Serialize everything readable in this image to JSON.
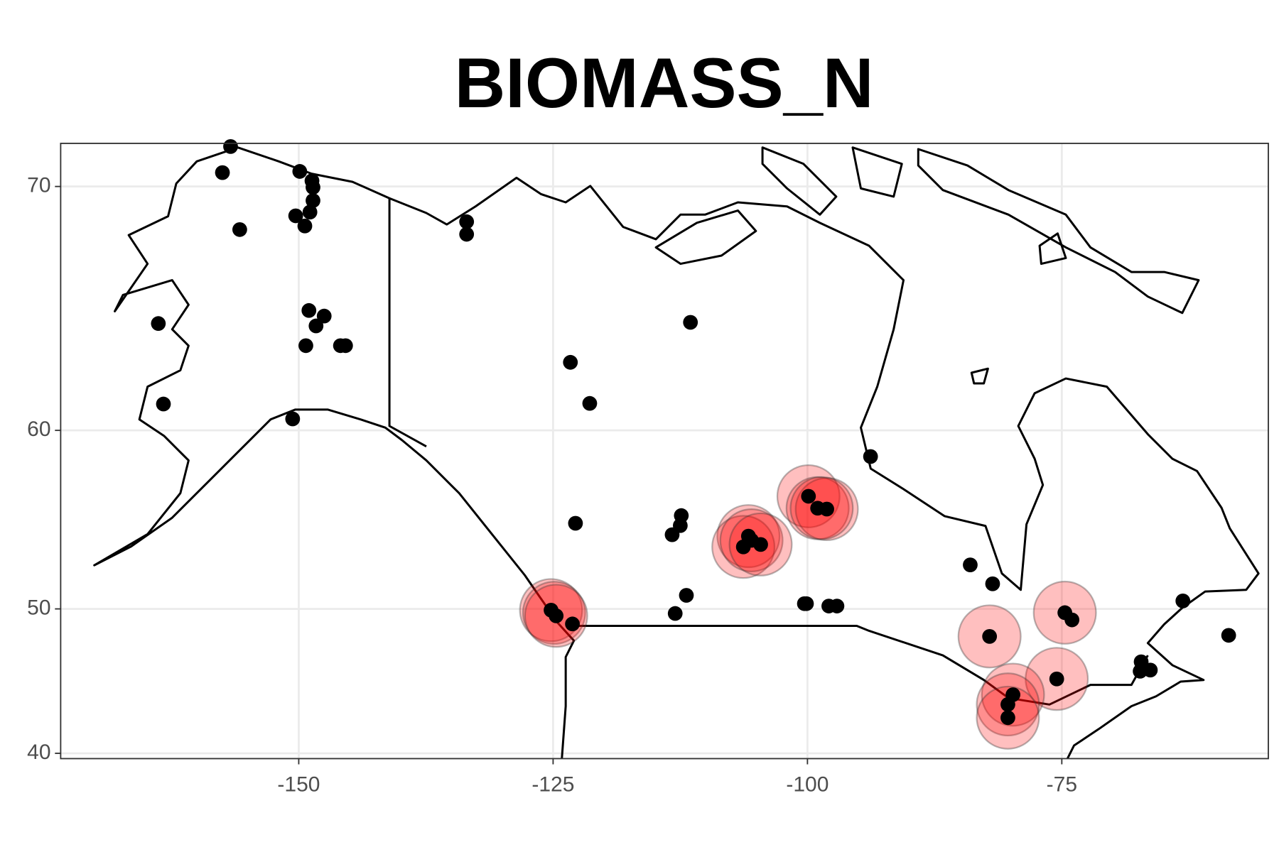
{
  "chart_data": {
    "type": "map",
    "title": "BIOMASS_N",
    "projection": "mercator",
    "xlim": [
      -173.4,
      -54.7
    ],
    "ylim": [
      39.6,
      71.4
    ],
    "xticks": [
      -150,
      -125,
      -100,
      -75
    ],
    "yticks": [
      70,
      60,
      50,
      40
    ],
    "grid": true,
    "points": {
      "color": "#000000",
      "x": [
        -156.7,
        -157.5,
        -155.8,
        -149.9,
        -148.7,
        -148.6,
        -148.6,
        -148.9,
        -150.3,
        -149.4,
        -149.0,
        -147.5,
        -148.3,
        -149.3,
        -145.9,
        -145.4,
        -163.8,
        -163.3,
        -150.6,
        -133.5,
        -133.5,
        -123.3,
        -121.4,
        -111.5,
        -122.8,
        -112.4,
        -112.5,
        -113.3,
        -111.9,
        -113.0,
        -100.3,
        -100.1,
        -97.9,
        -97.1,
        -105.8,
        -106.3,
        -104.6,
        -105.5,
        -99.9,
        -99.0,
        -98.1,
        -125.2,
        -124.7,
        -123.1,
        -93.8,
        -84.0,
        -81.8,
        -82.1,
        -74.7,
        -74.0,
        -75.5,
        -79.8,
        -80.3,
        -80.3,
        -63.1,
        -58.6,
        -67.2,
        -66.3,
        -67.3
      ],
      "y": [
        71.3,
        70.46,
        68.5,
        70.5,
        70.19,
        69.97,
        69.52,
        69.12,
        68.99,
        68.63,
        65.39,
        65.16,
        64.75,
        63.91,
        63.91,
        63.91,
        64.85,
        61.27,
        60.56,
        68.78,
        68.33,
        63.18,
        61.3,
        64.9,
        55.11,
        55.54,
        54.98,
        54.46,
        50.85,
        49.71,
        50.33,
        50.33,
        50.18,
        50.18,
        54.38,
        53.76,
        53.9,
        54.14,
        56.6,
        55.95,
        55.9,
        49.92,
        49.56,
        49.04,
        58.69,
        52.7,
        51.56,
        48.23,
        49.76,
        49.3,
        45.37,
        44.27,
        43.58,
        42.63,
        50.5,
        48.3,
        46.54,
        45.98,
        45.9
      ]
    },
    "circles": {
      "color": "#ff0000",
      "opacity": 0.25,
      "x": [
        -125.2,
        -124.9,
        -124.7,
        -105.8,
        -106.3,
        -105.5,
        -104.6,
        -99.9,
        -99.0,
        -98.1,
        -98.6,
        -82.1,
        -74.7,
        -75.5,
        -79.8,
        -80.3,
        -80.3
      ],
      "y": [
        49.92,
        49.75,
        49.56,
        54.38,
        53.76,
        54.14,
        53.9,
        56.6,
        55.95,
        55.9,
        55.95,
        48.23,
        49.76,
        45.37,
        44.27,
        43.58,
        42.63
      ]
    }
  }
}
